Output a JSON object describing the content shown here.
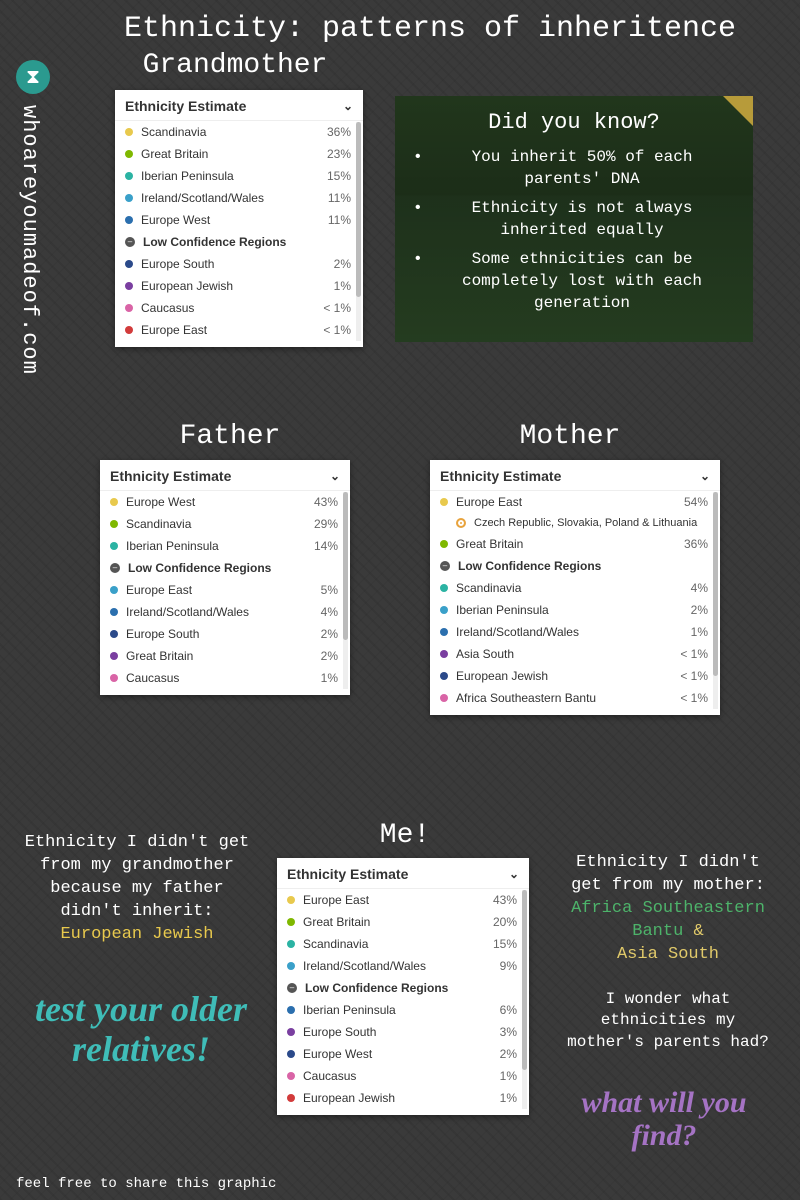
{
  "title": "Ethnicity: patterns of inheritence",
  "url": "whoareyoumadeof.com",
  "logo_glyph": "⧗",
  "labels": {
    "grandmother": "Grandmother",
    "father": "Father",
    "mother": "Mother",
    "me": "Me!"
  },
  "card_header": "Ethnicity Estimate",
  "low_conf_label": "Low Confidence Regions",
  "colors": {
    "bg": "#3a3a3a",
    "card_bg": "#ffffff",
    "accent_teal": "#3fbdb8",
    "accent_purple": "#a573c4",
    "hl_yellow": "#e8c94d",
    "hl_green": "#4db36a",
    "hl_gold": "#e0c96a"
  },
  "dot_palette": {
    "yellow": "#e8c94d",
    "green": "#7fb800",
    "teal": "#2bb3a3",
    "cyan": "#3aa0c9",
    "blue": "#2b6fae",
    "orange": "#e8a33d",
    "navy": "#2b4a8a",
    "purple": "#7a3fa0",
    "pink": "#d964a6",
    "red": "#d23b3b"
  },
  "grandmother": {
    "main": [
      {
        "name": "Scandinavia",
        "pct": "36%",
        "color": "yellow"
      },
      {
        "name": "Great Britain",
        "pct": "23%",
        "color": "green"
      },
      {
        "name": "Iberian Peninsula",
        "pct": "15%",
        "color": "teal"
      },
      {
        "name": "Ireland/Scotland/Wales",
        "pct": "11%",
        "color": "cyan"
      },
      {
        "name": "Europe West",
        "pct": "11%",
        "color": "blue"
      }
    ],
    "low": [
      {
        "name": "Europe South",
        "pct": "2%",
        "color": "navy"
      },
      {
        "name": "European Jewish",
        "pct": "1%",
        "color": "purple"
      },
      {
        "name": "Caucasus",
        "pct": "< 1%",
        "color": "pink"
      },
      {
        "name": "Europe East",
        "pct": "< 1%",
        "color": "red"
      }
    ]
  },
  "father": {
    "main": [
      {
        "name": "Europe West",
        "pct": "43%",
        "color": "yellow"
      },
      {
        "name": "Scandinavia",
        "pct": "29%",
        "color": "green"
      },
      {
        "name": "Iberian Peninsula",
        "pct": "14%",
        "color": "teal"
      }
    ],
    "low": [
      {
        "name": "Europe East",
        "pct": "5%",
        "color": "cyan"
      },
      {
        "name": "Ireland/Scotland/Wales",
        "pct": "4%",
        "color": "blue"
      },
      {
        "name": "Europe South",
        "pct": "2%",
        "color": "navy"
      },
      {
        "name": "Great Britain",
        "pct": "2%",
        "color": "purple"
      },
      {
        "name": "Caucasus",
        "pct": "1%",
        "color": "pink"
      }
    ]
  },
  "mother": {
    "main": [
      {
        "name": "Europe East",
        "pct": "54%",
        "color": "yellow"
      },
      {
        "sub": true,
        "name": "Czech Republic, Slovakia, Poland & Lithuania",
        "pct": "",
        "color": "orange"
      },
      {
        "name": "Great Britain",
        "pct": "36%",
        "color": "green"
      }
    ],
    "low": [
      {
        "name": "Scandinavia",
        "pct": "4%",
        "color": "teal"
      },
      {
        "name": "Iberian Peninsula",
        "pct": "2%",
        "color": "cyan"
      },
      {
        "name": "Ireland/Scotland/Wales",
        "pct": "1%",
        "color": "blue"
      },
      {
        "name": "Asia South",
        "pct": "< 1%",
        "color": "purple"
      },
      {
        "name": "European Jewish",
        "pct": "< 1%",
        "color": "navy"
      },
      {
        "name": "Africa Southeastern Bantu",
        "pct": "< 1%",
        "color": "pink"
      }
    ]
  },
  "me": {
    "main": [
      {
        "name": "Europe East",
        "pct": "43%",
        "color": "yellow"
      },
      {
        "name": "Great Britain",
        "pct": "20%",
        "color": "green"
      },
      {
        "name": "Scandinavia",
        "pct": "15%",
        "color": "teal"
      },
      {
        "name": "Ireland/Scotland/Wales",
        "pct": "9%",
        "color": "cyan"
      }
    ],
    "low": [
      {
        "name": "Iberian Peninsula",
        "pct": "6%",
        "color": "blue"
      },
      {
        "name": "Europe South",
        "pct": "3%",
        "color": "purple"
      },
      {
        "name": "Europe West",
        "pct": "2%",
        "color": "navy"
      },
      {
        "name": "Caucasus",
        "pct": "1%",
        "color": "pink"
      },
      {
        "name": "European Jewish",
        "pct": "1%",
        "color": "red"
      }
    ]
  },
  "dyk": {
    "heading": "Did you know?",
    "items": [
      "You inherit 50% of each parents' DNA",
      "Ethnicity is not always inherited equally",
      "Some ethnicities can be completely lost with each generation"
    ]
  },
  "side_left": {
    "text": "Ethnicity I didn't get from my grandmother because my father didn't inherit:",
    "highlight": "European Jewish"
  },
  "side_right": {
    "text": "Ethnicity I didn't get from my mother:",
    "h1": "Africa Southeastern Bantu",
    "amp": "&",
    "h2": "Asia South",
    "follow": "I wonder what ethnicities my mother's parents had?"
  },
  "cta_left": "test your older relatives!",
  "cta_right": "what will you find?",
  "footer": "feel free to share this graphic"
}
